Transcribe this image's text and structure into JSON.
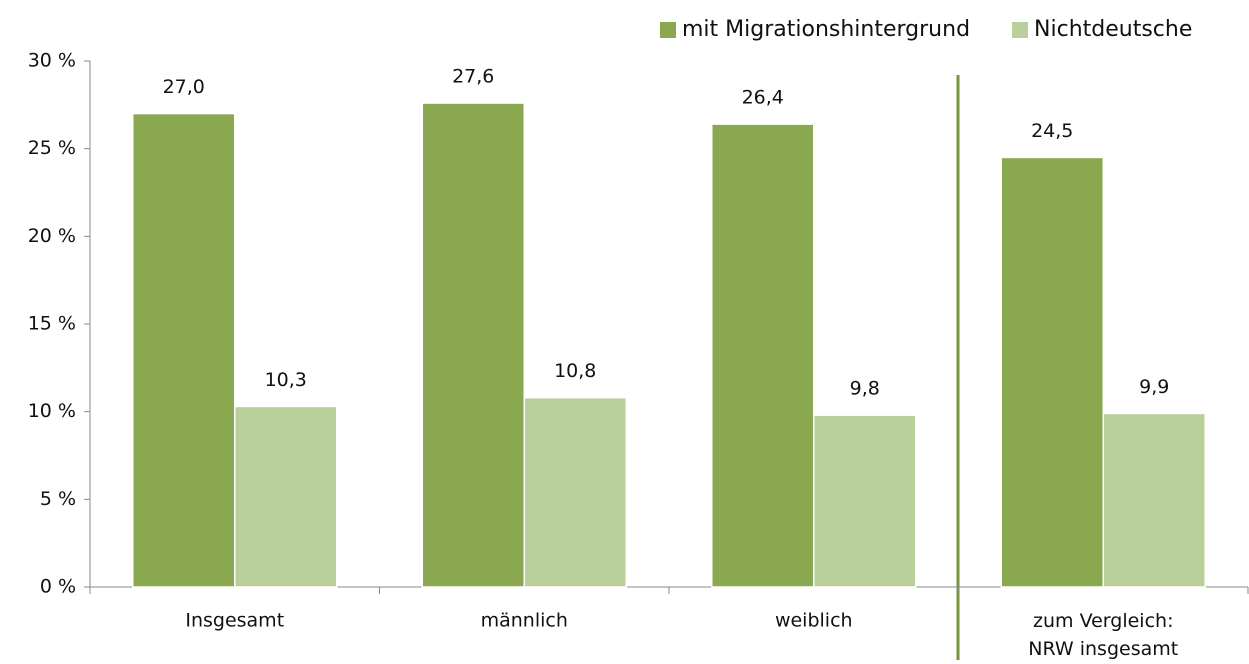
{
  "chart_data": {
    "type": "bar",
    "categories": [
      "Insgesamt",
      "männlich",
      "weiblich",
      "zum Vergleich:\nNRW insgesamt"
    ],
    "series": [
      {
        "name": "mit Migrationshintergrund",
        "color": "#8aa84f",
        "values": [
          27.0,
          27.6,
          26.4,
          24.5
        ],
        "value_labels": [
          "27,0",
          "27,6",
          "26,4",
          "24,5"
        ]
      },
      {
        "name": "Nichtdeutsche",
        "color": "#b9d09b",
        "values": [
          10.3,
          10.8,
          9.8,
          9.9
        ],
        "value_labels": [
          "10,3",
          "10,8",
          "9,8",
          "9,9"
        ]
      }
    ],
    "ylim": [
      0,
      30
    ],
    "yticks": [
      {
        "value": 0,
        "label": "0 %"
      },
      {
        "value": 5,
        "label": "5 %"
      },
      {
        "value": 10,
        "label": "10 %"
      },
      {
        "value": 15,
        "label": "15 %"
      },
      {
        "value": 20,
        "label": "20 %"
      },
      {
        "value": 25,
        "label": "25 %"
      },
      {
        "value": 30,
        "label": "30 %"
      }
    ],
    "legend": "top-right"
  }
}
